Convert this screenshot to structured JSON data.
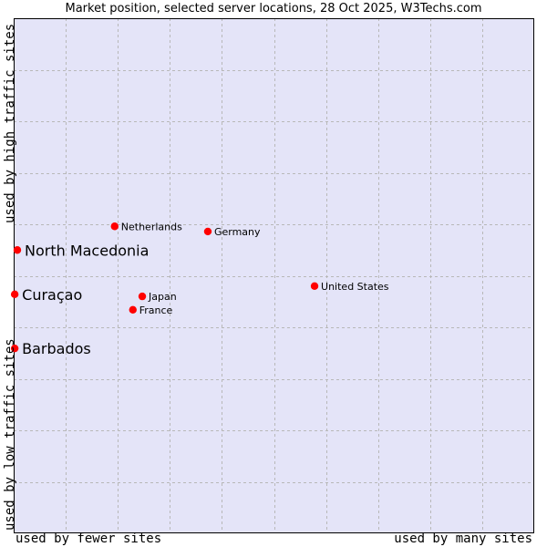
{
  "chart_data": {
    "type": "scatter",
    "title": "Market position, selected server locations, 28 Oct 2025, W3Techs.com",
    "xlabel_left": "used by fewer sites",
    "xlabel_right": "used by many sites",
    "ylabel_top": "used by high traffic sites",
    "ylabel_bottom": "used by low traffic sites",
    "xlim": [
      0,
      10
    ],
    "ylim": [
      0,
      10
    ],
    "grid": true,
    "point_color": "#ff0000",
    "background": "#e4e4f8",
    "points": [
      {
        "label": "North Macedonia",
        "x": 0.07,
        "y": 5.5,
        "highlight": true
      },
      {
        "label": "Curaçao",
        "x": 0.02,
        "y": 4.64,
        "highlight": true
      },
      {
        "label": "Barbados",
        "x": 0.02,
        "y": 3.59,
        "highlight": true
      },
      {
        "label": "Netherlands",
        "x": 1.94,
        "y": 5.96,
        "highlight": false
      },
      {
        "label": "Germany",
        "x": 3.73,
        "y": 5.86,
        "highlight": false
      },
      {
        "label": "United States",
        "x": 5.78,
        "y": 4.8,
        "highlight": false
      },
      {
        "label": "Japan",
        "x": 2.47,
        "y": 4.6,
        "highlight": false
      },
      {
        "label": "France",
        "x": 2.29,
        "y": 4.34,
        "highlight": false
      }
    ]
  }
}
